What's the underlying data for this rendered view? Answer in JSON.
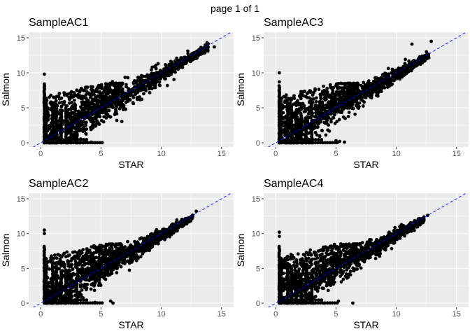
{
  "page": {
    "title": "page 1 of 1"
  },
  "style": {
    "panel_bg": "#ebebeb",
    "grid_major": "#ffffff",
    "point_color": "#000000",
    "ref_line_color": "#0000ff",
    "tick_color": "#4d4d4d"
  },
  "chart_data": [
    {
      "type": "scatter",
      "title": "SampleAC1",
      "xlabel": "STAR",
      "ylabel": "Salmon",
      "xlim": [
        -1,
        16
      ],
      "ylim": [
        -0.6,
        15.8
      ],
      "xticks": [
        0,
        5,
        10,
        15
      ],
      "yticks": [
        0,
        5,
        10,
        15
      ],
      "grid": true,
      "reference_line": {
        "slope": 1,
        "intercept": 0,
        "style": "dashed"
      },
      "x_max": 14.2,
      "outliers": [
        [
          12.2,
          13.1
        ],
        [
          13.8,
          14.3
        ],
        [
          14.4,
          13.7
        ],
        [
          0.3,
          9.8
        ],
        [
          0.3,
          8.4
        ],
        [
          3.5,
          0.0
        ],
        [
          4.2,
          0.1
        ],
        [
          3.2,
          0.0
        ]
      ]
    },
    {
      "type": "scatter",
      "title": "SampleAC3",
      "xlabel": "STAR",
      "ylabel": "Salmon",
      "xlim": [
        -1,
        16
      ],
      "ylim": [
        -0.6,
        15.8
      ],
      "xticks": [
        0,
        5,
        10,
        15
      ],
      "yticks": [
        0,
        5,
        10,
        15
      ],
      "grid": true,
      "reference_line": {
        "slope": 1,
        "intercept": 0,
        "style": "dashed"
      },
      "x_max": 13.0,
      "outliers": [
        [
          11.3,
          14.1
        ],
        [
          12.9,
          14.5
        ],
        [
          12.5,
          13.0
        ],
        [
          0.3,
          10.0
        ],
        [
          0.3,
          8.7
        ],
        [
          5.3,
          0.2
        ],
        [
          5.7,
          0.1
        ],
        [
          5.0,
          0.3
        ]
      ]
    },
    {
      "type": "scatter",
      "title": "SampleAC2",
      "xlabel": "STAR",
      "ylabel": "Salmon",
      "xlim": [
        -1,
        16
      ],
      "ylim": [
        -0.6,
        15.8
      ],
      "xticks": [
        0,
        5,
        10,
        15
      ],
      "yticks": [
        0,
        5,
        10,
        15
      ],
      "grid": true,
      "reference_line": {
        "slope": 1,
        "intercept": 0,
        "style": "dashed"
      },
      "x_max": 12.9,
      "outliers": [
        [
          12.9,
          13.2
        ],
        [
          0.3,
          10.5
        ],
        [
          0.3,
          10.0
        ],
        [
          5.8,
          0.3
        ],
        [
          4.5,
          0.1
        ],
        [
          6.0,
          0.0
        ]
      ]
    },
    {
      "type": "scatter",
      "title": "SampleAC4",
      "xlabel": "STAR",
      "ylabel": "Salmon",
      "xlim": [
        -1,
        16
      ],
      "ylim": [
        -0.6,
        15.8
      ],
      "xticks": [
        0,
        5,
        10,
        15
      ],
      "yticks": [
        0,
        5,
        10,
        15
      ],
      "grid": true,
      "reference_line": {
        "slope": 1,
        "intercept": 0,
        "style": "dashed"
      },
      "x_max": 12.6,
      "outliers": [
        [
          12.6,
          12.6
        ],
        [
          0.3,
          10.2
        ],
        [
          0.3,
          9.6
        ],
        [
          5.9,
          3.6
        ],
        [
          5.2,
          0.3
        ],
        [
          6.4,
          0.0
        ]
      ]
    }
  ]
}
